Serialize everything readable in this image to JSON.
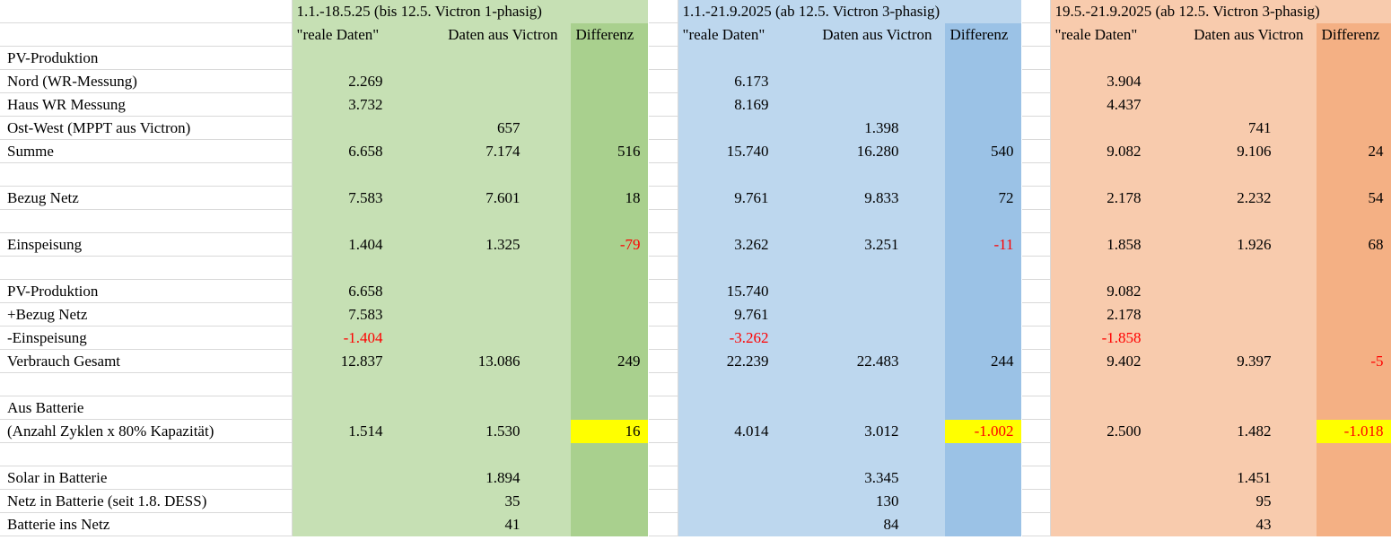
{
  "groups": [
    {
      "title": "1.1.-18.5.25 (bis 12.5. Victron 1-phasig)",
      "headers": [
        "\"reale Daten\"",
        "Daten aus Victron",
        "Differenz"
      ],
      "color": "#c6e0b4",
      "diff_color": "#a9d08e"
    },
    {
      "title": "1.1.-21.9.2025 (ab 12.5. Victron 3-phasig)",
      "headers": [
        "\"reale Daten\"",
        "Daten aus Victron",
        "Differenz"
      ],
      "color": "#bdd7ee",
      "diff_color": "#9bc2e6"
    },
    {
      "title": "19.5.-21.9.2025 (ab 12.5. Victron 3-phasig)",
      "headers": [
        "\"reale Daten\"",
        "Daten aus Victron",
        "Differenz"
      ],
      "color": "#f8cbad",
      "diff_color": "#f4b084"
    }
  ],
  "rows": [
    [
      "PV-Produktion",
      null,
      null,
      null,
      null,
      null,
      null,
      null,
      null,
      null
    ],
    [
      "Nord (WR-Messung)",
      "2.269",
      null,
      null,
      "6.173",
      null,
      null,
      "3.904",
      null,
      null
    ],
    [
      "Haus WR Messung",
      "3.732",
      null,
      null,
      "8.169",
      null,
      null,
      "4.437",
      null,
      null
    ],
    [
      "Ost-West (MPPT aus Victron)",
      null,
      "657",
      null,
      null,
      "1.398",
      null,
      null,
      "741",
      null
    ],
    [
      "Summe",
      "6.658",
      "7.174",
      "516",
      "15.740",
      "16.280",
      "540",
      "9.082",
      "9.106",
      "24"
    ],
    null,
    [
      "Bezug Netz",
      "7.583",
      "7.601",
      "18",
      "9.761",
      "9.833",
      "72",
      "2.178",
      "2.232",
      "54"
    ],
    null,
    [
      "Einspeisung",
      "1.404",
      "1.325",
      "-79",
      "3.262",
      "3.251",
      "-11",
      "1.858",
      "1.926",
      "68"
    ],
    null,
    [
      "PV-Produktion",
      "6.658",
      null,
      null,
      "15.740",
      null,
      null,
      "9.082",
      null,
      null
    ],
    [
      "+Bezug Netz",
      "7.583",
      null,
      null,
      "9.761",
      null,
      null,
      "2.178",
      null,
      null
    ],
    [
      "-Einspeisung",
      "-1.404",
      null,
      null,
      "-3.262",
      null,
      null,
      "-1.858",
      null,
      null
    ],
    [
      "Verbrauch Gesamt",
      "12.837",
      "13.086",
      "249",
      "22.239",
      "22.483",
      "244",
      "9.402",
      "9.397",
      "-5"
    ],
    null,
    [
      "Aus Batterie",
      null,
      null,
      null,
      null,
      null,
      null,
      null,
      null,
      null
    ],
    [
      "(Anzahl Zyklen x 80% Kapazität)",
      "1.514",
      "1.530",
      "16",
      "4.014",
      "3.012",
      "-1.002",
      "2.500",
      "1.482",
      "-1.018"
    ],
    null,
    [
      "Solar in Batterie",
      null,
      "1.894",
      null,
      null,
      "3.345",
      null,
      null,
      "1.451",
      null
    ],
    [
      "Netz in Batterie (seit 1.8. DESS)",
      null,
      "35",
      null,
      null,
      "130",
      null,
      null,
      "95",
      null
    ],
    [
      "Batterie ins Netz",
      null,
      "41",
      null,
      null,
      "84",
      null,
      null,
      "43",
      null
    ]
  ],
  "highlight": {
    "row": 16,
    "color": "#ffff00"
  },
  "negative_color": "#ff0000"
}
